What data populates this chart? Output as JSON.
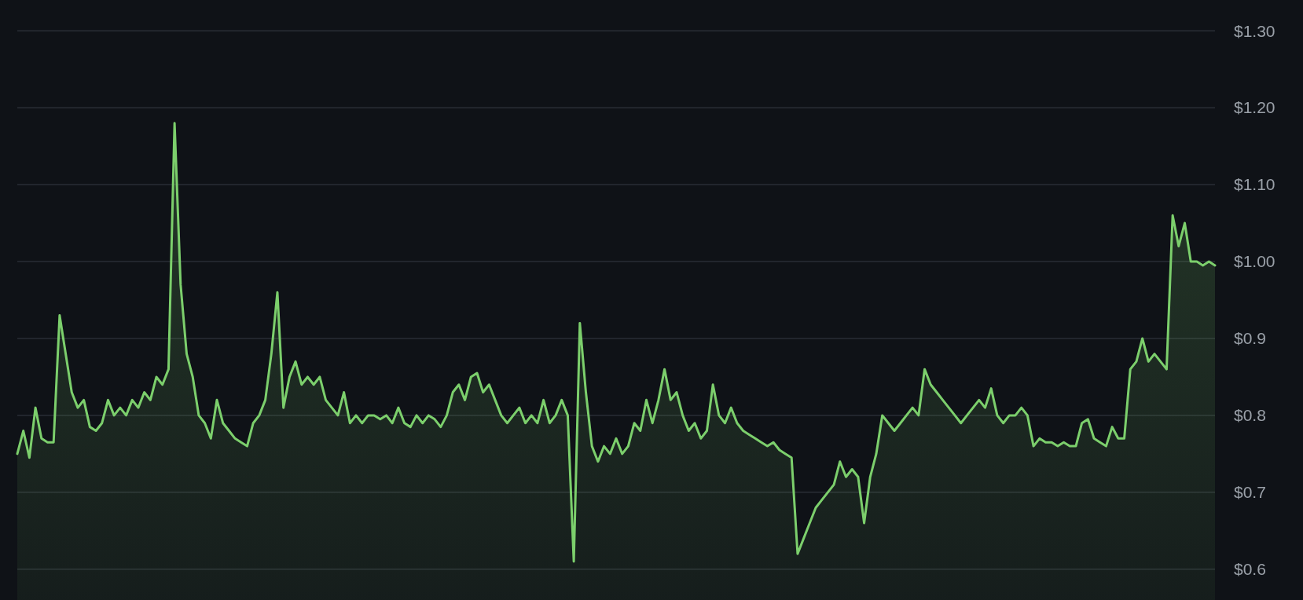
{
  "chart_data": {
    "type": "area",
    "categories": [
      null,
      null,
      null,
      null,
      null,
      null,
      null,
      null,
      null,
      null,
      null,
      null,
      null,
      null,
      null,
      null,
      null,
      null,
      null,
      null,
      null,
      null,
      null,
      null,
      null,
      null,
      null,
      null,
      null,
      null,
      null,
      null,
      null,
      null,
      null,
      null,
      null,
      null,
      null,
      null,
      null,
      null,
      null,
      null,
      null,
      null,
      null,
      null,
      null,
      null,
      null,
      null,
      null,
      null,
      null,
      null,
      null,
      null,
      null,
      null,
      null,
      null,
      null,
      null,
      null,
      null,
      null,
      null,
      null,
      null,
      null,
      null,
      null,
      null,
      null,
      null,
      null,
      null,
      null,
      null,
      null,
      null,
      null,
      null,
      null,
      null,
      null,
      null,
      null,
      null,
      null,
      null,
      null,
      null,
      null,
      null,
      null,
      null,
      null,
      null,
      null,
      null,
      null,
      null,
      null,
      null,
      null,
      null,
      null,
      null,
      null,
      null,
      null,
      null,
      null,
      null,
      null,
      null,
      null,
      null,
      null,
      null,
      null,
      null,
      null,
      null,
      null,
      null,
      null,
      null,
      null,
      null,
      null,
      null,
      null,
      null,
      null,
      null,
      null,
      null,
      null,
      null,
      null,
      null,
      null,
      null,
      null,
      null,
      null,
      null,
      null,
      null,
      null,
      null,
      null,
      null,
      null,
      null,
      null,
      null,
      null,
      null,
      null,
      null,
      null,
      null,
      null,
      null,
      null,
      null,
      null,
      null,
      null,
      null,
      null,
      null,
      null,
      null,
      null,
      null,
      null,
      null,
      null,
      null,
      null,
      null,
      null,
      null,
      null,
      null,
      null,
      null,
      null,
      null,
      null,
      null,
      null,
      null,
      null
    ],
    "series": [
      {
        "color": "#7ccf6c",
        "values": [
          0.75,
          0.78,
          0.745,
          0.81,
          0.77,
          0.765,
          0.765,
          0.93,
          0.88,
          0.83,
          0.81,
          0.82,
          0.785,
          0.78,
          0.79,
          0.82,
          0.8,
          0.81,
          0.8,
          0.82,
          0.81,
          0.83,
          0.82,
          0.85,
          0.84,
          0.86,
          1.18,
          0.97,
          0.88,
          0.85,
          0.8,
          0.79,
          0.77,
          0.82,
          0.79,
          0.78,
          0.77,
          0.765,
          0.76,
          0.79,
          0.8,
          0.82,
          0.88,
          0.96,
          0.81,
          0.85,
          0.87,
          0.84,
          0.85,
          0.84,
          0.85,
          0.82,
          0.81,
          0.8,
          0.83,
          0.79,
          0.8,
          0.79,
          0.8,
          0.8,
          0.795,
          0.8,
          0.79,
          0.81,
          0.79,
          0.785,
          0.8,
          0.79,
          0.8,
          0.795,
          0.785,
          0.8,
          0.83,
          0.84,
          0.82,
          0.85,
          0.855,
          0.83,
          0.84,
          0.82,
          0.8,
          0.79,
          0.8,
          0.81,
          0.79,
          0.8,
          0.79,
          0.82,
          0.79,
          0.8,
          0.82,
          0.8,
          0.61,
          0.92,
          0.83,
          0.76,
          0.74,
          0.76,
          0.75,
          0.77,
          0.75,
          0.76,
          0.79,
          0.78,
          0.82,
          0.79,
          0.82,
          0.86,
          0.82,
          0.83,
          0.8,
          0.78,
          0.79,
          0.77,
          0.78,
          0.84,
          0.8,
          0.79,
          0.81,
          0.79,
          0.78,
          0.775,
          0.77,
          0.765,
          0.76,
          0.765,
          0.755,
          0.75,
          0.745,
          0.62,
          0.64,
          0.66,
          0.68,
          0.69,
          0.7,
          0.71,
          0.74,
          0.72,
          0.73,
          0.72,
          0.66,
          0.72,
          0.75,
          0.8,
          0.79,
          0.78,
          0.79,
          0.8,
          0.81,
          0.8,
          0.86,
          0.84,
          0.83,
          0.82,
          0.81,
          0.8,
          0.79,
          0.8,
          0.81,
          0.82,
          0.81,
          0.835,
          0.8,
          0.79,
          0.8,
          0.8,
          0.81,
          0.8,
          0.76,
          0.77,
          0.765,
          0.765,
          0.76,
          0.765,
          0.76,
          0.76,
          0.79,
          0.795,
          0.77,
          0.765,
          0.76,
          0.785,
          0.77,
          0.77,
          0.86,
          0.87,
          0.9,
          0.87,
          0.88,
          0.87,
          0.86,
          1.06,
          1.02,
          1.05,
          1,
          1,
          0.995,
          1,
          0.995
        ]
      }
    ],
    "ylim": [
      0.56,
      1.34
    ],
    "yticks": [
      {
        "value": 0.6,
        "label": "$0.6"
      },
      {
        "value": 0.7,
        "label": "$0.7"
      },
      {
        "value": 0.8,
        "label": "$0.8"
      },
      {
        "value": 0.9,
        "label": "$0.9"
      },
      {
        "value": 1.0,
        "label": "$1.00"
      },
      {
        "value": 1.1,
        "label": "$1.10"
      },
      {
        "value": 1.2,
        "label": "$1.20"
      },
      {
        "value": 1.3,
        "label": "$1.30"
      }
    ],
    "grid": "y",
    "tick_labels": "y"
  }
}
